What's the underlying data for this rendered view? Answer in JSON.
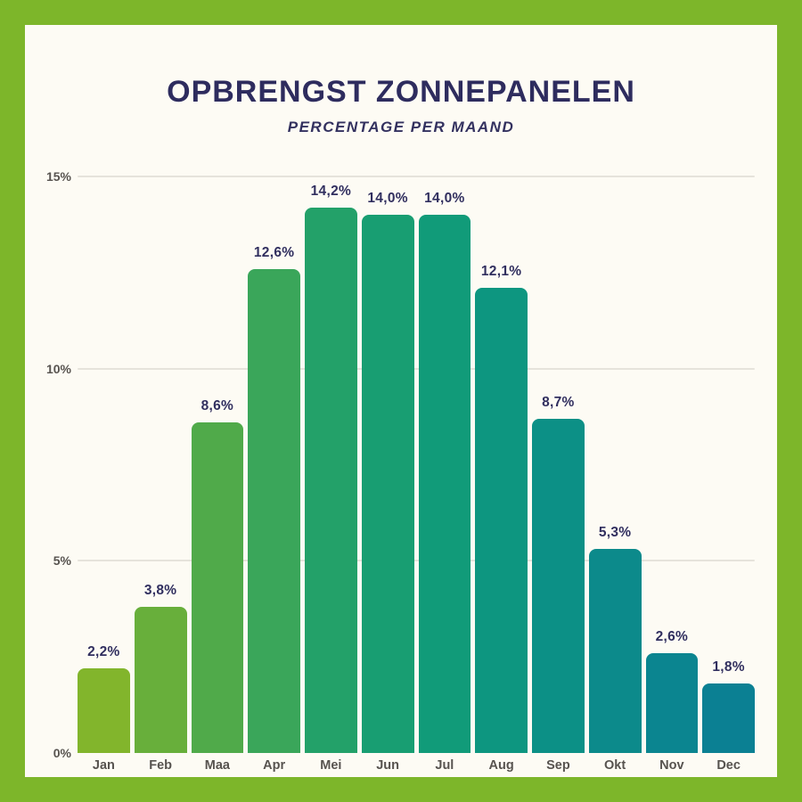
{
  "frame": {
    "border_color": "#7DB62A",
    "panel_background": "#FDFBF4"
  },
  "header": {
    "title": "OPBRENGST ZONNEPANELEN",
    "subtitle": "PERCENTAGE PER MAAND",
    "title_color": "#2E2C5E",
    "subtitle_color": "#33315F"
  },
  "chart_data": {
    "type": "bar",
    "title": "OPBRENGST ZONNEPANELEN",
    "subtitle": "PERCENTAGE PER MAAND",
    "categories": [
      "Jan",
      "Feb",
      "Maa",
      "Apr",
      "Mei",
      "Jun",
      "Jul",
      "Aug",
      "Sep",
      "Okt",
      "Nov",
      "Dec"
    ],
    "values": [
      2.2,
      3.8,
      8.6,
      12.6,
      14.2,
      14.0,
      14.0,
      12.1,
      8.7,
      5.3,
      2.6,
      1.8
    ],
    "value_labels": [
      "2,2%",
      "3,8%",
      "8,6%",
      "12,6%",
      "14,2%",
      "14,0%",
      "14,0%",
      "12,1%",
      "8,7%",
      "5,3%",
      "2,6%",
      "1,8%"
    ],
    "bar_colors": [
      "#82B52C",
      "#68AF3B",
      "#50AA4A",
      "#3AA65A",
      "#23A169",
      "#189E72",
      "#119B79",
      "#0D9680",
      "#0C9086",
      "#0C8A8B",
      "#0B8590",
      "#0B8093"
    ],
    "xlabel": "",
    "ylabel": "",
    "ylim": [
      0,
      15
    ],
    "yticks": [
      0,
      5,
      10,
      15
    ],
    "ytick_labels": [
      "0%",
      "5%",
      "10%",
      "15%"
    ],
    "grid": true,
    "gridline_color": "#E6E3DB",
    "value_label_color": "#312F5F",
    "axis_text_color": "#57534F",
    "legend_position": "none"
  }
}
